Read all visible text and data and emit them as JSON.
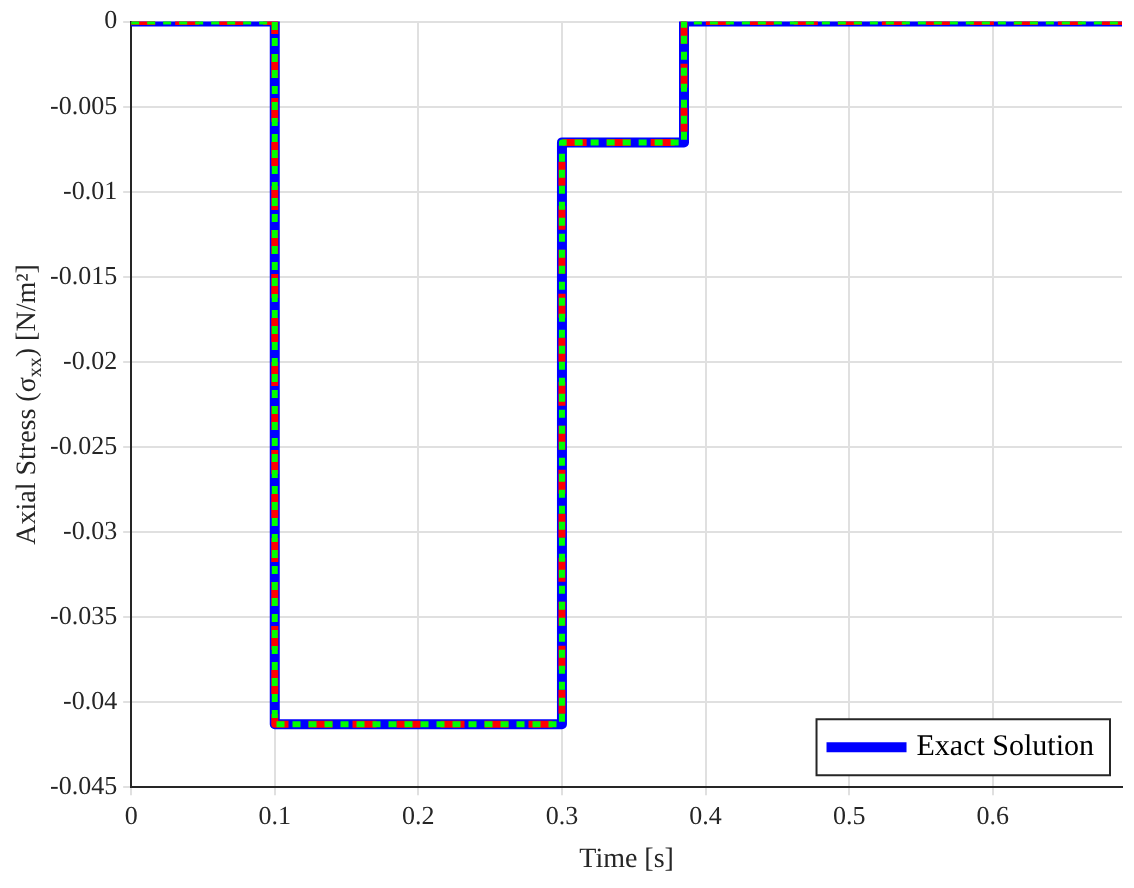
{
  "chart_data": {
    "type": "line",
    "xlabel": "Time [s]",
    "ylabel": "Axial Stress (σ$_{xx}$) [N/m²]",
    "x": [
      0,
      0.1,
      0.1,
      0.3,
      0.3,
      0.385,
      0.385,
      0.69
    ],
    "series": [
      {
        "name": "Exact Solution",
        "color": "#0000ff",
        "line_style": "solid",
        "values": [
          0,
          0,
          -0.0413,
          -0.0413,
          -0.0071,
          -0.0071,
          0,
          0
        ]
      },
      {
        "color": "#ff0000",
        "line_style": "dashed",
        "values": [
          0,
          0,
          -0.0413,
          -0.0413,
          -0.0071,
          -0.0071,
          0,
          0
        ]
      },
      {
        "color": "#00ff00",
        "line_style": "dotted",
        "values": [
          0,
          0,
          -0.0413,
          -0.0413,
          -0.0071,
          -0.0071,
          0,
          0
        ]
      }
    ],
    "xlim": [
      0,
      0.69
    ],
    "xticks": [
      0,
      0.1,
      0.2,
      0.3,
      0.4,
      0.5,
      0.6
    ],
    "ylim": [
      -0.045,
      0
    ],
    "yticks": [
      -0.045,
      -0.04,
      -0.035,
      -0.03,
      -0.025,
      -0.02,
      -0.015,
      -0.01,
      -0.005,
      0
    ],
    "grid": true,
    "legend": "bottom right",
    "marker": "none"
  }
}
